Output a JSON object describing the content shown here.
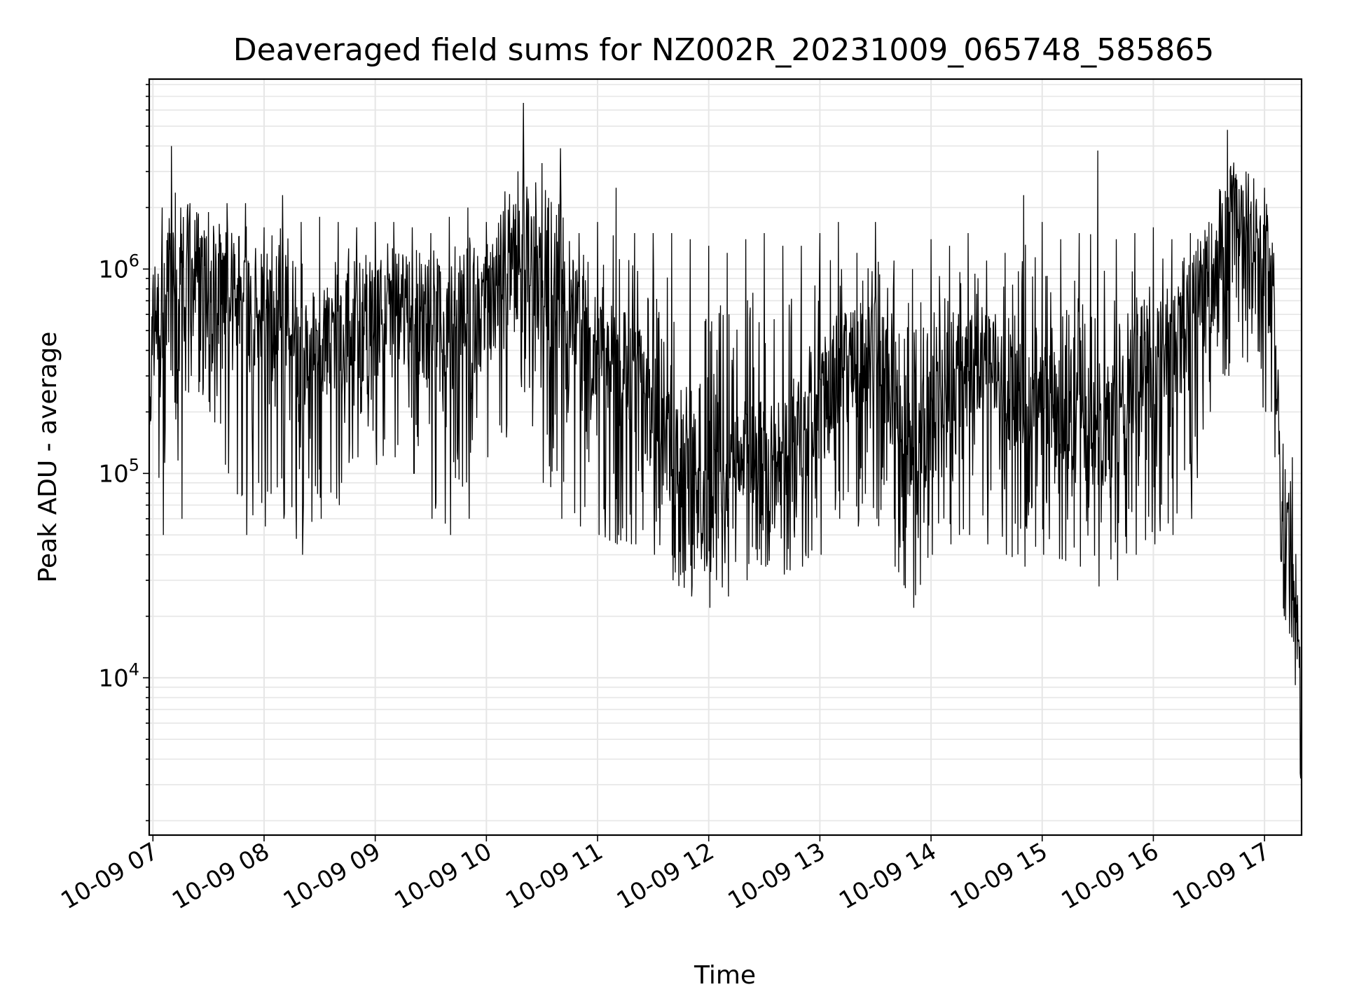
{
  "chart_data": {
    "type": "line",
    "title": "Deaveraged field sums for NZ002R_20231009_065748_585865",
    "xlabel": "Time",
    "ylabel": "Peak ADU - average",
    "yscale": "log",
    "ylim": [
      1700,
      8500000
    ],
    "xlim": [
      "2023-10-09 06:58",
      "2023-10-09 17:20"
    ],
    "grid": true,
    "line_color": "#000000",
    "grid_color": "#e6e6e6",
    "x_tick_labels": [
      "10-09 07",
      "10-09 08",
      "10-09 09",
      "10-09 10",
      "10-09 11",
      "10-09 12",
      "10-09 13",
      "10-09 14",
      "10-09 15",
      "10-09 16",
      "10-09 17"
    ],
    "x_ticks": [
      "2023-10-09 07:00",
      "2023-10-09 08:00",
      "2023-10-09 09:00",
      "2023-10-09 10:00",
      "2023-10-09 11:00",
      "2023-10-09 12:00",
      "2023-10-09 13:00",
      "2023-10-09 14:00",
      "2023-10-09 15:00",
      "2023-10-09 16:00",
      "2023-10-09 17:00"
    ],
    "y_ticks": [
      {
        "value": 10000,
        "base": "10",
        "exponent": "4"
      },
      {
        "value": 100000,
        "base": "10",
        "exponent": "5"
      },
      {
        "value": 1000000,
        "base": "10",
        "exponent": "6"
      }
    ],
    "series": [
      {
        "x": [
          "2023-10-09 06:58",
          "2023-10-09 07:05",
          "2023-10-09 07:10",
          "2023-10-09 07:15",
          "2023-10-09 07:20",
          "2023-10-09 07:30",
          "2023-10-09 07:40",
          "2023-10-09 07:50",
          "2023-10-09 08:00",
          "2023-10-09 08:10",
          "2023-10-09 08:20",
          "2023-10-09 08:30",
          "2023-10-09 08:40",
          "2023-10-09 08:50",
          "2023-10-09 09:00",
          "2023-10-09 09:10",
          "2023-10-09 09:20",
          "2023-10-09 09:30",
          "2023-10-09 09:40",
          "2023-10-09 09:50",
          "2023-10-09 10:00",
          "2023-10-09 10:10",
          "2023-10-09 10:20",
          "2023-10-09 10:30",
          "2023-10-09 10:40",
          "2023-10-09 10:50",
          "2023-10-09 11:00",
          "2023-10-09 11:10",
          "2023-10-09 11:20",
          "2023-10-09 11:30",
          "2023-10-09 11:40",
          "2023-10-09 11:50",
          "2023-10-09 12:00",
          "2023-10-09 12:10",
          "2023-10-09 12:20",
          "2023-10-09 12:30",
          "2023-10-09 12:40",
          "2023-10-09 12:50",
          "2023-10-09 13:00",
          "2023-10-09 13:10",
          "2023-10-09 13:20",
          "2023-10-09 13:30",
          "2023-10-09 13:40",
          "2023-10-09 13:50",
          "2023-10-09 14:00",
          "2023-10-09 14:10",
          "2023-10-09 14:20",
          "2023-10-09 14:30",
          "2023-10-09 14:40",
          "2023-10-09 14:50",
          "2023-10-09 15:00",
          "2023-10-09 15:10",
          "2023-10-09 15:20",
          "2023-10-09 15:30",
          "2023-10-09 15:40",
          "2023-10-09 15:50",
          "2023-10-09 16:00",
          "2023-10-09 16:10",
          "2023-10-09 16:20",
          "2023-10-09 16:30",
          "2023-10-09 16:40",
          "2023-10-09 16:50",
          "2023-10-09 17:00",
          "2023-10-09 17:05",
          "2023-10-09 17:10",
          "2023-10-09 17:15",
          "2023-10-09 17:20"
        ],
        "y": [
          500000,
          600000,
          900000,
          1000000,
          1200000,
          800000,
          900000,
          700000,
          600000,
          500000,
          400000,
          450000,
          500000,
          550000,
          600000,
          650000,
          600000,
          550000,
          500000,
          600000,
          700000,
          1000000,
          1200000,
          900000,
          700000,
          500000,
          400000,
          350000,
          300000,
          200000,
          120000,
          80000,
          60000,
          90000,
          110000,
          120000,
          130000,
          160000,
          200000,
          300000,
          350000,
          400000,
          250000,
          120000,
          180000,
          250000,
          300000,
          350000,
          300000,
          250000,
          220000,
          200000,
          180000,
          160000,
          200000,
          280000,
          350000,
          420000,
          600000,
          900000,
          1600000,
          1800000,
          1200000,
          700000,
          60000,
          40000,
          8000
        ],
        "y_min": [
          180000,
          50000,
          300000,
          60000,
          300000,
          200000,
          100000,
          50000,
          55000,
          60000,
          40000,
          60000,
          70000,
          120000,
          110000,
          120000,
          100000,
          60000,
          50000,
          60000,
          120000,
          150000,
          250000,
          90000,
          60000,
          55000,
          50000,
          45000,
          45000,
          40000,
          30000,
          25000,
          22000,
          25000,
          30000,
          35000,
          32000,
          35000,
          40000,
          60000,
          55000,
          60000,
          35000,
          22000,
          40000,
          45000,
          50000,
          45000,
          40000,
          35000,
          40000,
          38000,
          35000,
          28000,
          30000,
          40000,
          45000,
          50000,
          60000,
          200000,
          300000,
          350000,
          200000,
          120000,
          20000,
          15000,
          2400
        ],
        "y_max": [
          1000000,
          2000000,
          4000000,
          2000000,
          2100000,
          1900000,
          2100000,
          2100000,
          1600000,
          2300000,
          1700000,
          1800000,
          1700000,
          1600000,
          1700000,
          1700000,
          1600000,
          1500000,
          1800000,
          2000000,
          1700000,
          2400000,
          6500000,
          3300000,
          3900000,
          1500000,
          1700000,
          2500000,
          1500000,
          1500000,
          1500000,
          1400000,
          1300000,
          1200000,
          1400000,
          1500000,
          1300000,
          1300000,
          1500000,
          1700000,
          1200000,
          1700000,
          1100000,
          1000000,
          1400000,
          1300000,
          1500000,
          1100000,
          1200000,
          2300000,
          1700000,
          1400000,
          1500000,
          3800000,
          1400000,
          1500000,
          1600000,
          1400000,
          1500000,
          1700000,
          4800000,
          3000000,
          2500000,
          1200000,
          140000,
          120000,
          100000
        ]
      }
    ]
  }
}
